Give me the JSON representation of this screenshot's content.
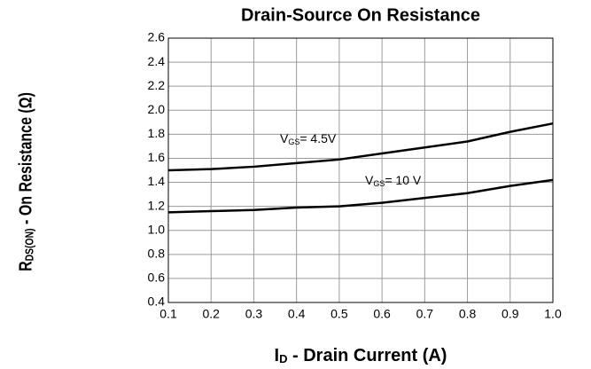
{
  "chart_data": {
    "type": "line",
    "title": "Drain-Source On Resistance",
    "xlabel_parts": [
      "I",
      "D",
      " - Drain Current (A)"
    ],
    "ylabel_parts": [
      "R",
      "DS(ON)",
      " - On Resistance (Ω)"
    ],
    "x": [
      0.1,
      0.2,
      0.3,
      0.4,
      0.5,
      0.6,
      0.7,
      0.8,
      0.9,
      1.0
    ],
    "series": [
      {
        "label_parts": [
          "V",
          "GS",
          "= 4.5V"
        ],
        "color": "#000000",
        "values": [
          1.5,
          1.51,
          1.53,
          1.56,
          1.59,
          1.64,
          1.69,
          1.74,
          1.82,
          1.89
        ]
      },
      {
        "label_parts": [
          "V",
          "GS",
          "= 10 V"
        ],
        "color": "#000000",
        "values": [
          1.15,
          1.16,
          1.17,
          1.19,
          1.2,
          1.23,
          1.27,
          1.31,
          1.37,
          1.42
        ]
      }
    ],
    "xlim": [
      0.1,
      1.0
    ],
    "xticks": [
      0.1,
      0.2,
      0.3,
      0.4,
      0.5,
      0.6,
      0.7,
      0.8,
      0.9,
      {
        "value": 1.0,
        "label": "1.0"
      }
    ],
    "ylim": [
      0.4,
      2.6
    ],
    "yticks": [
      0.4,
      0.6,
      0.8,
      {
        "value": 1.0,
        "label": "1.0"
      },
      1.2,
      1.4,
      1.6,
      1.8,
      {
        "value": 2.0,
        "label": "2.0"
      },
      2.2,
      2.4,
      2.6
    ],
    "grid": true
  }
}
